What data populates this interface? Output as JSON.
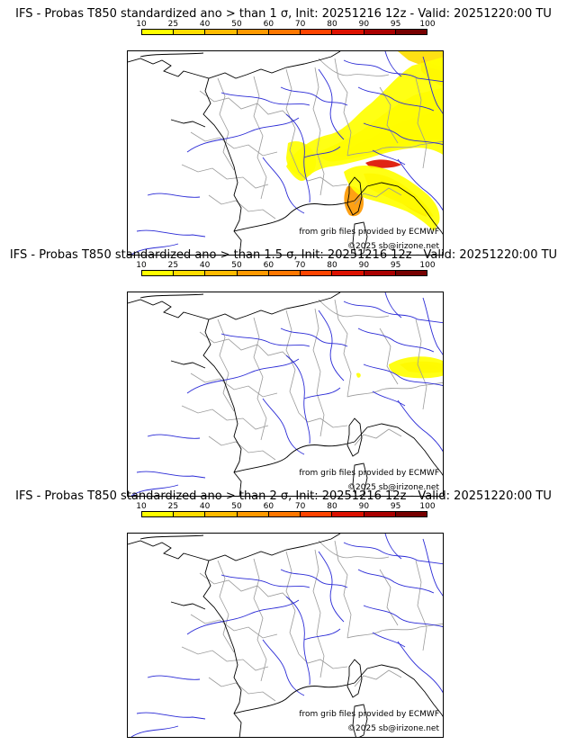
{
  "colorscale": {
    "ticks": [
      "10",
      "25",
      "40",
      "50",
      "60",
      "70",
      "80",
      "90",
      "95",
      "100"
    ],
    "colors": [
      "#ffff00",
      "#ffdd00",
      "#ffbb00",
      "#ff9900",
      "#ff7700",
      "#ff4400",
      "#dd1100",
      "#aa0000",
      "#770000"
    ]
  },
  "credits": {
    "source": "from grib files provided by ECMWF",
    "copyright": "©2025 sb@irizone.net"
  },
  "panels": [
    {
      "title": "IFS - Probas T850  standardized ano > than 1 σ, Init: 20251216 12z - Valid: 20251220:00 TU"
    },
    {
      "title": "IFS - Probas T850  standardized ano > than 1.5 σ, Init: 20251216 12z - Valid: 20251220:00 TU"
    },
    {
      "title": "IFS - Probas T850  standardized ano > than 2 σ, Init: 20251216 12z - Valid: 20251220:00 TU"
    }
  ],
  "map_layers": {
    "coastline": "#000000",
    "rivers": "#2a2ad6",
    "borders": "#9a9a9a"
  }
}
